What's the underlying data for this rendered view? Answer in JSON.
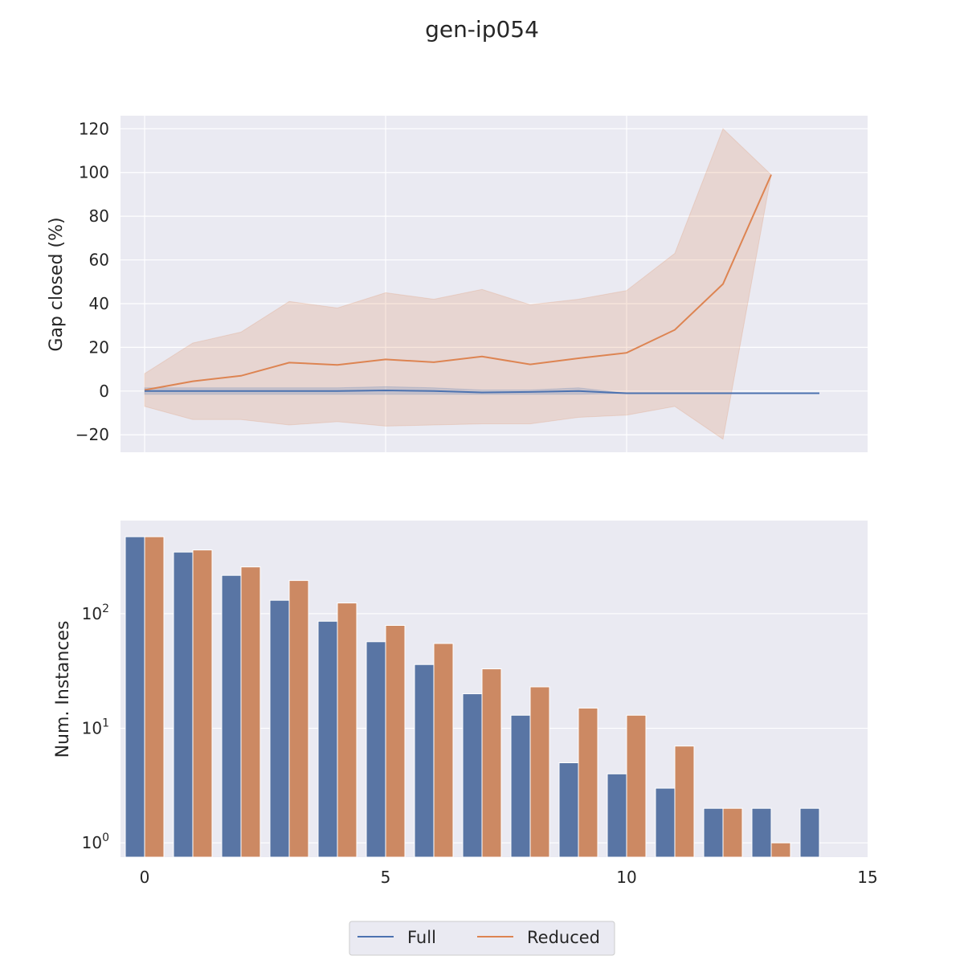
{
  "title": "gen-ip054",
  "colors": {
    "full": "#4c72b0",
    "reduced": "#dd8452",
    "full_bar": "#5975a4",
    "reduced_bar": "#cc8963",
    "axes_bg": "#eaeaf2",
    "grid": "#ffffff"
  },
  "legend": {
    "placement": "bottom-center",
    "items": [
      "Full",
      "Reduced"
    ]
  },
  "chart_data": [
    {
      "type": "line",
      "ylabel": "Gap closed (%)",
      "xlabel": "",
      "xlim": [
        -0.5,
        15
      ],
      "ylim": [
        -28,
        126
      ],
      "x_ticks": [
        0,
        5,
        10
      ],
      "y_ticks": [
        -20,
        0,
        20,
        40,
        60,
        80,
        100,
        120
      ],
      "y_tick_labels": [
        "−20",
        "0",
        "20",
        "40",
        "60",
        "80",
        "100",
        "120"
      ],
      "grid": true,
      "series": [
        {
          "name": "Full",
          "x": [
            0,
            1,
            2,
            3,
            4,
            5,
            6,
            7,
            8,
            9,
            10,
            11,
            12,
            13,
            14
          ],
          "y": [
            0,
            0,
            0,
            0,
            0,
            0.3,
            0,
            -0.6,
            -0.4,
            0,
            -1,
            -1,
            -1,
            -1,
            -1
          ],
          "band_upper": [
            1.5,
            1.5,
            1.5,
            1.5,
            1.5,
            2,
            1.5,
            0.5,
            0.5,
            1.5,
            -1,
            -1,
            -1,
            -1,
            -1
          ],
          "band_lower": [
            -1.5,
            -1.5,
            -1.5,
            -1.5,
            -1.5,
            -1.5,
            -1.5,
            -1.5,
            -1.5,
            -1.5,
            -1,
            -1,
            -1,
            -1,
            -1
          ]
        },
        {
          "name": "Reduced",
          "x": [
            0,
            1,
            2,
            3,
            4,
            5,
            6,
            7,
            8,
            9,
            10,
            11,
            12,
            13
          ],
          "y": [
            0.5,
            4.5,
            7,
            13,
            12,
            14.5,
            13.2,
            15.8,
            12.2,
            15,
            17.5,
            28,
            49,
            99
          ],
          "band_upper": [
            8,
            22,
            27,
            41,
            38,
            45,
            42,
            46.5,
            39.5,
            42,
            46,
            63,
            120,
            99
          ],
          "band_lower": [
            -7,
            -13,
            -13,
            -15.5,
            -14,
            -16,
            -15.5,
            -15,
            -15,
            -12,
            -11,
            -7,
            -22,
            99
          ]
        }
      ]
    },
    {
      "type": "bar",
      "ylabel": "Num. Instances",
      "xlabel": "",
      "yscale": "log",
      "xlim": [
        -0.5,
        15
      ],
      "ylim": [
        0.75,
        650
      ],
      "x_ticks": [
        0,
        5,
        10,
        15
      ],
      "y_ticks": [
        1,
        10,
        100
      ],
      "y_tick_bases": [
        "10",
        "10",
        "10"
      ],
      "y_tick_exps": [
        "0",
        "1",
        "2"
      ],
      "grid": true,
      "categories": [
        0,
        1,
        2,
        3,
        4,
        5,
        6,
        7,
        8,
        9,
        10,
        11,
        12,
        13,
        14
      ],
      "series": [
        {
          "name": "Full",
          "values": [
            470,
            345,
            216,
            131,
            86,
            57,
            36,
            20,
            13,
            5,
            4,
            3,
            2,
            2,
            2
          ]
        },
        {
          "name": "Reduced",
          "values": [
            470,
            360,
            256,
            195,
            124,
            79,
            55,
            33,
            23,
            15,
            13,
            7,
            2,
            1,
            null
          ]
        }
      ]
    }
  ]
}
